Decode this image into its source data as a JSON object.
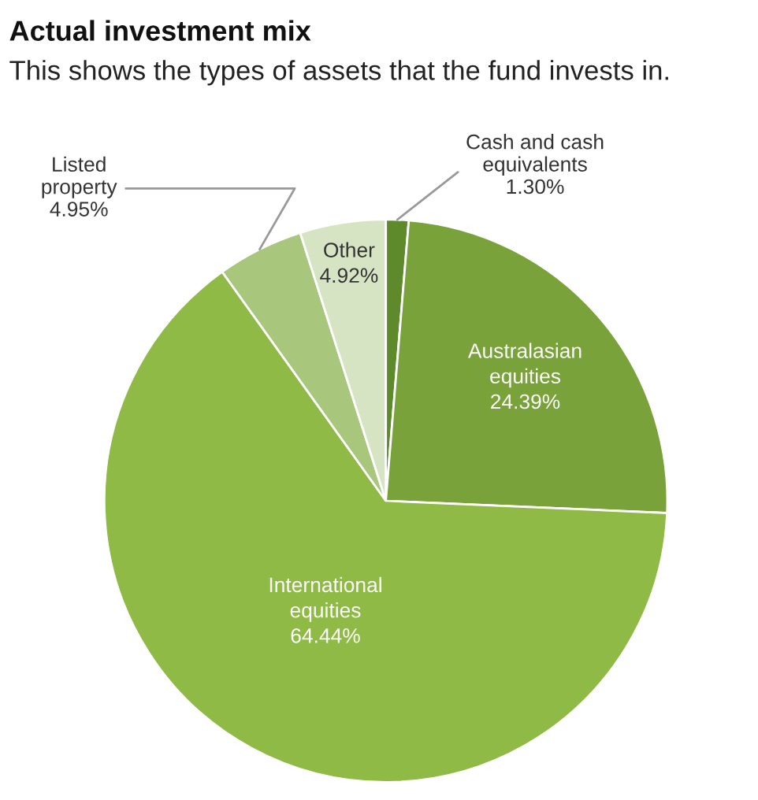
{
  "chart_data": {
    "type": "pie",
    "title": "Actual investment mix",
    "subtitle": "This shows the types of assets that the fund invests in.",
    "categories": [
      "Cash and cash\nequivalents",
      "Australasian\nequities",
      "International\nequities",
      "Listed\nproperty",
      "Other"
    ],
    "values": [
      1.3,
      24.39,
      64.44,
      4.95,
      4.92
    ],
    "value_labels": [
      "1.30%",
      "24.39%",
      "64.44%",
      "4.95%",
      "4.92%"
    ],
    "colors": [
      "#5e8a2c",
      "#79a33a",
      "#8fba45",
      "#a8c77c",
      "#d6e4c4"
    ]
  }
}
